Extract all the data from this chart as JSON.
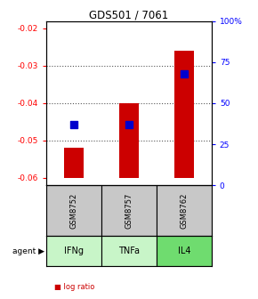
{
  "title": "GDS501 / 7061",
  "samples": [
    "GSM8752",
    "GSM8757",
    "GSM8762"
  ],
  "agents": [
    "IFNg",
    "TNFa",
    "IL4"
  ],
  "x_positions": [
    0.5,
    1.5,
    2.5
  ],
  "log_ratios": [
    -0.052,
    -0.04,
    -0.026
  ],
  "percentile_ranks": [
    37,
    37,
    68
  ],
  "ylim_left": [
    -0.062,
    -0.018
  ],
  "ylim_right": [
    0,
    100
  ],
  "left_yticks": [
    -0.06,
    -0.05,
    -0.04,
    -0.03,
    -0.02
  ],
  "right_yticks": [
    0,
    25,
    50,
    75,
    100
  ],
  "right_ytick_labels": [
    "0",
    "25",
    "50",
    "75",
    "100%"
  ],
  "bar_color": "#cc0000",
  "dot_color": "#0000cc",
  "bar_bottom": -0.06,
  "sample_box_color": "#c8c8c8",
  "agent_colors": [
    "#c8f5c8",
    "#c8f5c8",
    "#6fdc6f"
  ],
  "grid_color": "#555555",
  "dot_size": 30,
  "bar_width": 0.35,
  "bar_edge_color": "#990000",
  "figsize": [
    2.9,
    3.36
  ],
  "dpi": 100
}
